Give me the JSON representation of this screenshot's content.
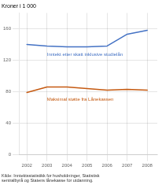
{
  "chart_data": {
    "type": "line",
    "ylabel": "Kroner i 1 000",
    "source": "Kilde: Inntektsstatistikk for husholdninger, Statistisk\nsentralbyrå og Statens lånekasse for utdanning.",
    "x": [
      2002,
      2003,
      2004,
      2005,
      2006,
      2007,
      2008
    ],
    "series": [
      {
        "color": "#4472c4",
        "values": [
          140,
          138,
          137,
          137,
          138,
          153,
          158
        ]
      },
      {
        "color": "#c55a11",
        "values": [
          79,
          86,
          86,
          84,
          82,
          83,
          82
        ]
      }
    ],
    "annotations": [
      {
        "text": "Inntekt etter skatt inklusive studielån",
        "x": 2003,
        "y": 130,
        "color": "#4472c4"
      },
      {
        "text": "Maksimal støtte fra Lånekassen",
        "x": 2003,
        "y": 73,
        "color": "#c55a11"
      }
    ],
    "xlim": [
      2001.6,
      2008.5
    ],
    "xticks": [
      2002,
      2003,
      2004,
      2005,
      2006,
      2007,
      2008
    ],
    "ylim": [
      0,
      180
    ],
    "yticks": [
      0,
      40,
      80,
      120,
      160
    ],
    "grid": true
  }
}
